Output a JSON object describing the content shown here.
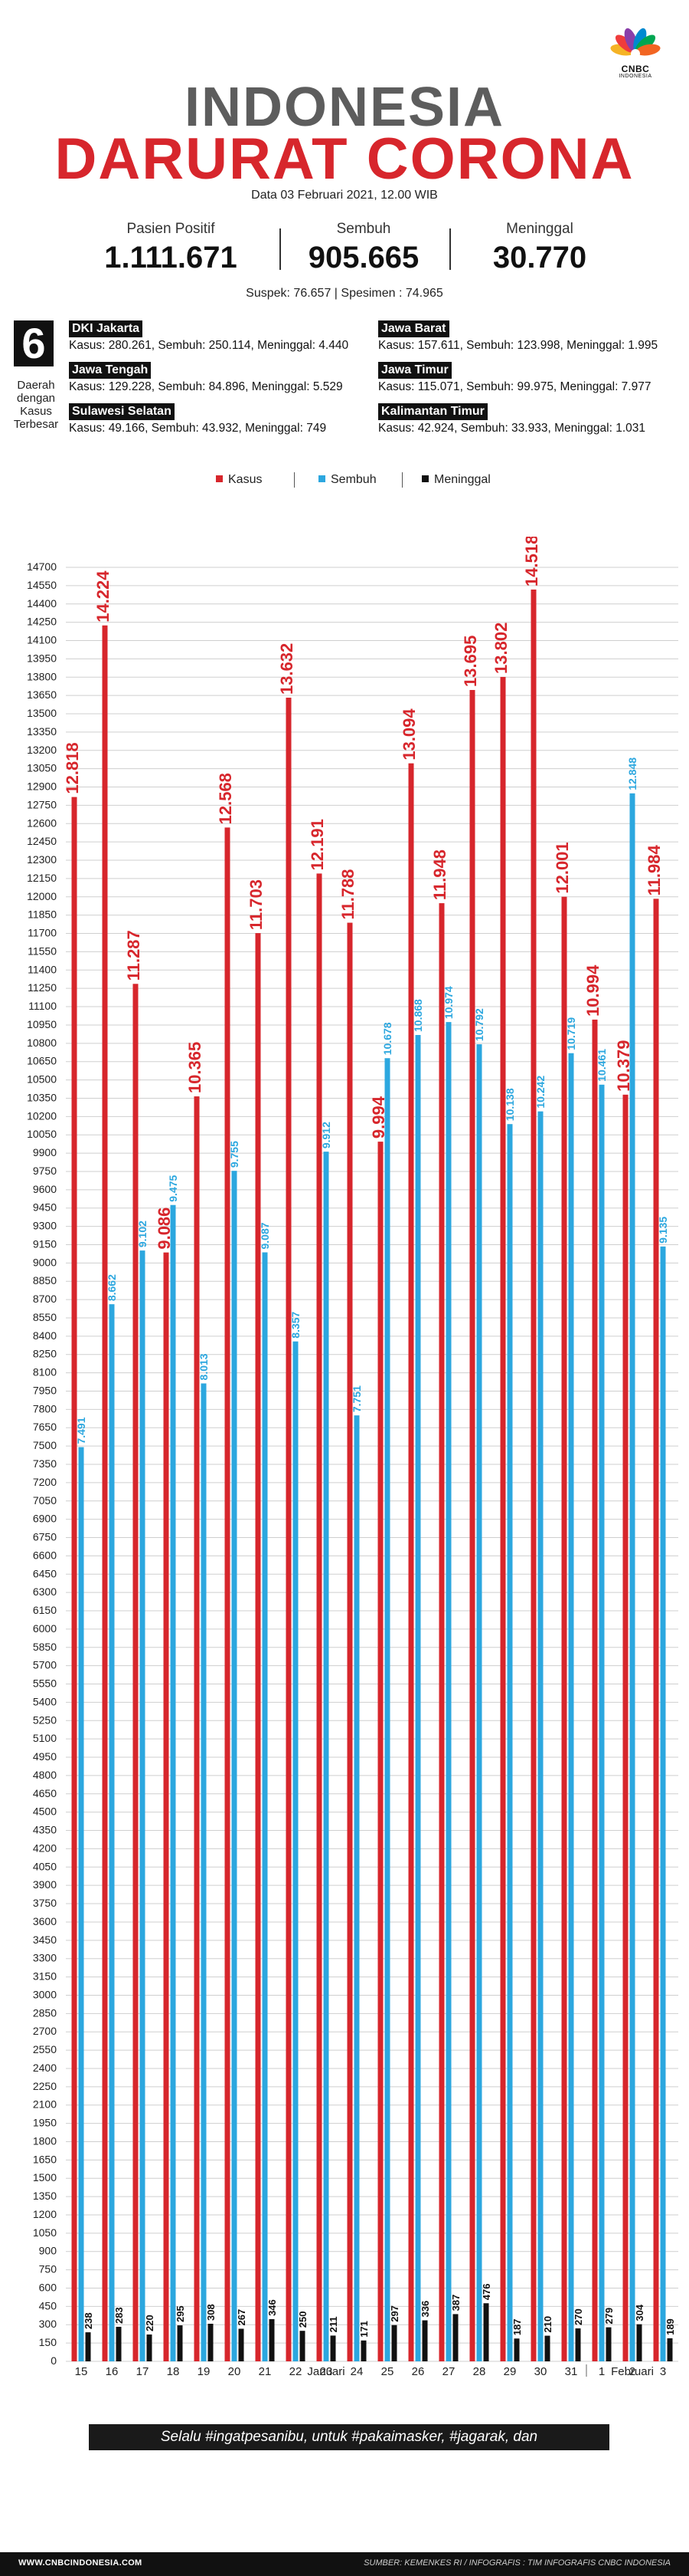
{
  "brand": {
    "logo_text": "CNBC",
    "logo_sub": "INDONESIA",
    "peacock_colors": [
      "#f5b325",
      "#ef3c3c",
      "#8a3ea9",
      "#0089d0",
      "#00a651",
      "#f26522"
    ]
  },
  "header": {
    "title_line1": "INDONESIA",
    "title_line2": "DARURAT CORONA",
    "date": "Data 03 Februari 2021, 12.00 WIB"
  },
  "stats": [
    {
      "label": "Pasien Positif",
      "value": "1.111.671"
    },
    {
      "label": "Sembuh",
      "value": "905.665"
    },
    {
      "label": "Meninggal",
      "value": "30.770"
    }
  ],
  "suspek_line": "Suspek: 76.657  |  Spesimen : 74.965",
  "regions": {
    "count": "6",
    "caption": [
      "Daerah",
      "dengan",
      "Kasus",
      "Terbesar"
    ],
    "items": [
      {
        "name": "DKI Jakarta",
        "stats": "Kasus: 280.261, Sembuh: 250.114, Meninggal: 4.440"
      },
      {
        "name": "Jawa Barat",
        "stats": "Kasus: 157.611, Sembuh: 123.998, Meninggal: 1.995"
      },
      {
        "name": "Jawa Tengah",
        "stats": "Kasus: 129.228, Sembuh: 84.896, Meninggal: 5.529"
      },
      {
        "name": "Jawa Timur",
        "stats": "Kasus: 115.071, Sembuh: 99.975, Meninggal: 7.977"
      },
      {
        "name": "Sulawesi Selatan",
        "stats": "Kasus: 49.166, Sembuh: 43.932, Meninggal: 749"
      },
      {
        "name": "Kalimantan Timur",
        "stats": "Kasus: 42.924, Sembuh: 33.933, Meninggal: 1.031"
      }
    ]
  },
  "colors": {
    "kasus": "#d7262c",
    "sembuh": "#2ca7df",
    "meninggal": "#111111",
    "grid": "#cfcfcf"
  },
  "chart_data": {
    "type": "bar",
    "categories": [
      "15",
      "16",
      "17",
      "18",
      "19",
      "20",
      "21",
      "22",
      "23",
      "24",
      "25",
      "26",
      "27",
      "28",
      "29",
      "30",
      "31",
      "1",
      "2",
      "3"
    ],
    "group_labels": [
      {
        "label": "Januari"
      },
      {
        "label": "Februari"
      }
    ],
    "series": [
      {
        "name": "Kasus",
        "values": [
          12818,
          14224,
          11287,
          9086,
          10365,
          12568,
          11703,
          13632,
          12191,
          11788,
          9994,
          13094,
          11948,
          13695,
          13802,
          14518,
          12001,
          10994,
          10379,
          11984
        ],
        "labels": [
          "12.818",
          "14.224",
          "11.287",
          "9.086",
          "10.365",
          "12.568",
          "11.703",
          "13.632",
          "12.191",
          "11.788",
          "9.994",
          "13.094",
          "11.948",
          "13.695",
          "13.802",
          "14.518",
          "12.001",
          "10.994",
          "10.379",
          "11.984"
        ]
      },
      {
        "name": "Sembuh",
        "values": [
          7491,
          8662,
          9102,
          9475,
          8013,
          9755,
          9087,
          8357,
          9912,
          7751,
          10678,
          10868,
          10974,
          10792,
          10138,
          10242,
          10719,
          10461,
          12848,
          9135
        ],
        "labels": [
          "7.491",
          "8.662",
          "9.102",
          "9.475",
          "8.013",
          "9.755",
          "9.087",
          "8.357",
          "9.912",
          "7.751",
          "10.678",
          "10.868",
          "10.974",
          "10.792",
          "10.138",
          "10.242",
          "10.719",
          "10.461",
          "12.848",
          "9.135"
        ]
      },
      {
        "name": "Meninggal",
        "values": [
          238,
          283,
          220,
          295,
          308,
          267,
          346,
          250,
          211,
          171,
          297,
          336,
          387,
          476,
          187,
          210,
          270,
          279,
          304,
          189
        ],
        "labels": [
          "238",
          "283",
          "220",
          "295",
          "308",
          "267",
          "346",
          "250",
          "211",
          "171",
          "297",
          "336",
          "387",
          "476",
          "187",
          "210",
          "270",
          "279",
          "304",
          "189"
        ]
      }
    ],
    "ylim": [
      0,
      14700
    ],
    "ytick_step": 150,
    "grid": true,
    "legend_position": "top-center"
  },
  "footer": {
    "slogan": "Selalu #ingatpesanibu, untuk #pakaimasker, #jagarak, dan #cucitanganpakaisabun",
    "website": "WWW.CNBCINDONESIA.COM",
    "source": "SUMBER: KEMENKES RI / INFOGRAFIS : TIM INFOGRAFIS CNBC INDONESIA"
  }
}
